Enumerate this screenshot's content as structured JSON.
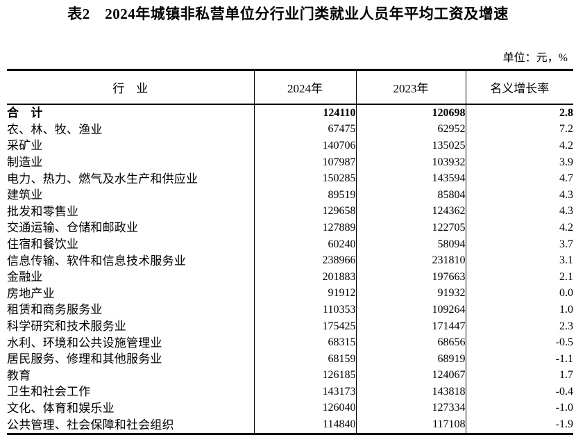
{
  "page": {
    "title": "表2　2024年城镇非私营单位分行业门类就业人员年平均工资及增速",
    "unit_note": "单位：元，%"
  },
  "table": {
    "columns": [
      "行　业",
      "2024年",
      "2023年",
      "名义增长率"
    ],
    "rows": [
      {
        "industry": "合　计",
        "y2024": "124110",
        "y2023": "120698",
        "growth": "2.8",
        "bold": true
      },
      {
        "industry": "农、林、牧、渔业",
        "y2024": "67475",
        "y2023": "62952",
        "growth": "7.2",
        "bold": false
      },
      {
        "industry": "采矿业",
        "y2024": "140706",
        "y2023": "135025",
        "growth": "4.2",
        "bold": false
      },
      {
        "industry": "制造业",
        "y2024": "107987",
        "y2023": "103932",
        "growth": "3.9",
        "bold": false
      },
      {
        "industry": "电力、热力、燃气及水生产和供应业",
        "y2024": "150285",
        "y2023": "143594",
        "growth": "4.7",
        "bold": false
      },
      {
        "industry": "建筑业",
        "y2024": "89519",
        "y2023": "85804",
        "growth": "4.3",
        "bold": false
      },
      {
        "industry": "批发和零售业",
        "y2024": "129658",
        "y2023": "124362",
        "growth": "4.3",
        "bold": false
      },
      {
        "industry": "交通运输、仓储和邮政业",
        "y2024": "127889",
        "y2023": "122705",
        "growth": "4.2",
        "bold": false
      },
      {
        "industry": "住宿和餐饮业",
        "y2024": "60240",
        "y2023": "58094",
        "growth": "3.7",
        "bold": false
      },
      {
        "industry": "信息传输、软件和信息技术服务业",
        "y2024": "238966",
        "y2023": "231810",
        "growth": "3.1",
        "bold": false
      },
      {
        "industry": "金融业",
        "y2024": "201883",
        "y2023": "197663",
        "growth": "2.1",
        "bold": false
      },
      {
        "industry": "房地产业",
        "y2024": "91912",
        "y2023": "91932",
        "growth": "0.0",
        "bold": false
      },
      {
        "industry": "租赁和商务服务业",
        "y2024": "110353",
        "y2023": "109264",
        "growth": "1.0",
        "bold": false
      },
      {
        "industry": "科学研究和技术服务业",
        "y2024": "175425",
        "y2023": "171447",
        "growth": "2.3",
        "bold": false
      },
      {
        "industry": "水利、环境和公共设施管理业",
        "y2024": "68315",
        "y2023": "68656",
        "growth": "-0.5",
        "bold": false
      },
      {
        "industry": "居民服务、修理和其他服务业",
        "y2024": "68159",
        "y2023": "68919",
        "growth": "-1.1",
        "bold": false
      },
      {
        "industry": "教育",
        "y2024": "126185",
        "y2023": "124067",
        "growth": "1.7",
        "bold": false
      },
      {
        "industry": "卫生和社会工作",
        "y2024": "143173",
        "y2023": "143818",
        "growth": "-0.4",
        "bold": false
      },
      {
        "industry": "文化、体育和娱乐业",
        "y2024": "126040",
        "y2023": "127334",
        "growth": "-1.0",
        "bold": false
      },
      {
        "industry": "公共管理、社会保障和社会组织",
        "y2024": "114840",
        "y2023": "117108",
        "growth": "-1.9",
        "bold": false
      }
    ]
  }
}
